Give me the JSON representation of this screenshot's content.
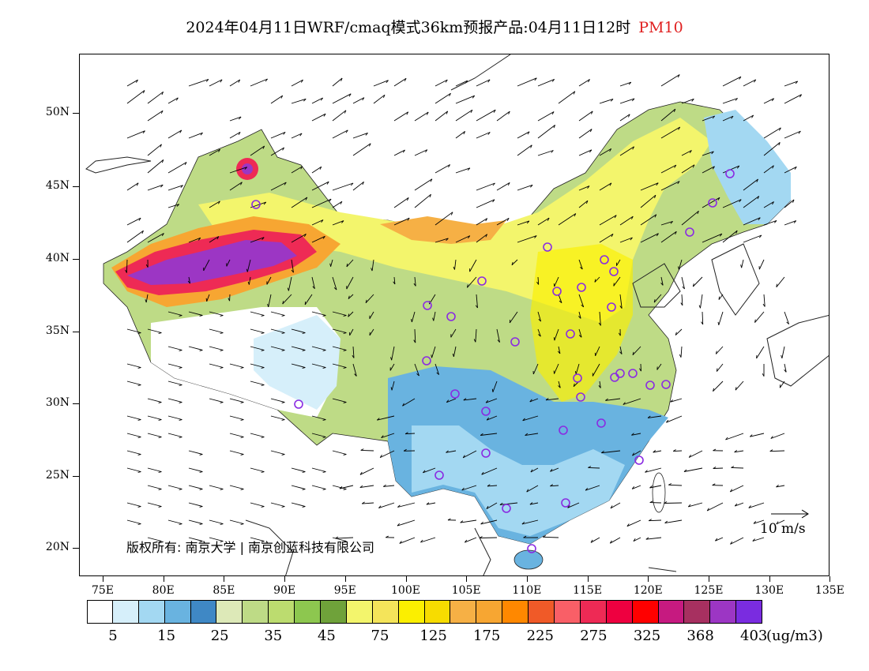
{
  "title": {
    "main": "2024年04月11日WRF/cmaq模式36km预报产品:04月11日12时",
    "variable": "PM10",
    "variable_color": "#e02020"
  },
  "map": {
    "lat_labels": [
      "50N",
      "45N",
      "40N",
      "35N",
      "30N",
      "25N",
      "20N"
    ],
    "lon_labels": [
      "75E",
      "80E",
      "85E",
      "90E",
      "95E",
      "100E",
      "105E",
      "110E",
      "115E",
      "120E",
      "125E",
      "130E",
      "135E"
    ],
    "copyright": "版权所有: 南京大学 | 南京创蓝科技有限公司",
    "wind_scale_label": "10 m/s"
  },
  "colorbar": {
    "colors": [
      "#ffffff",
      "#d6effa",
      "#a3d8f2",
      "#69b3e0",
      "#3f88c5",
      "#dde9b8",
      "#bedb86",
      "#bcdc6f",
      "#8dc74f",
      "#6fa23a",
      "#f3f56c",
      "#f4e45a",
      "#fbef00",
      "#f7dc00",
      "#f6b045",
      "#f7a632",
      "#ff8800",
      "#f05a28",
      "#f95f67",
      "#ee2a55",
      "#ee0040",
      "#ff0000",
      "#c61a80",
      "#a73060",
      "#9c36c4",
      "#7a2ce0"
    ],
    "labels": [
      "5",
      "15",
      "25",
      "35",
      "45",
      "75",
      "125",
      "175",
      "225",
      "275",
      "325",
      "368",
      "403"
    ],
    "unit": "(ug/m3)"
  },
  "stations": 34
}
